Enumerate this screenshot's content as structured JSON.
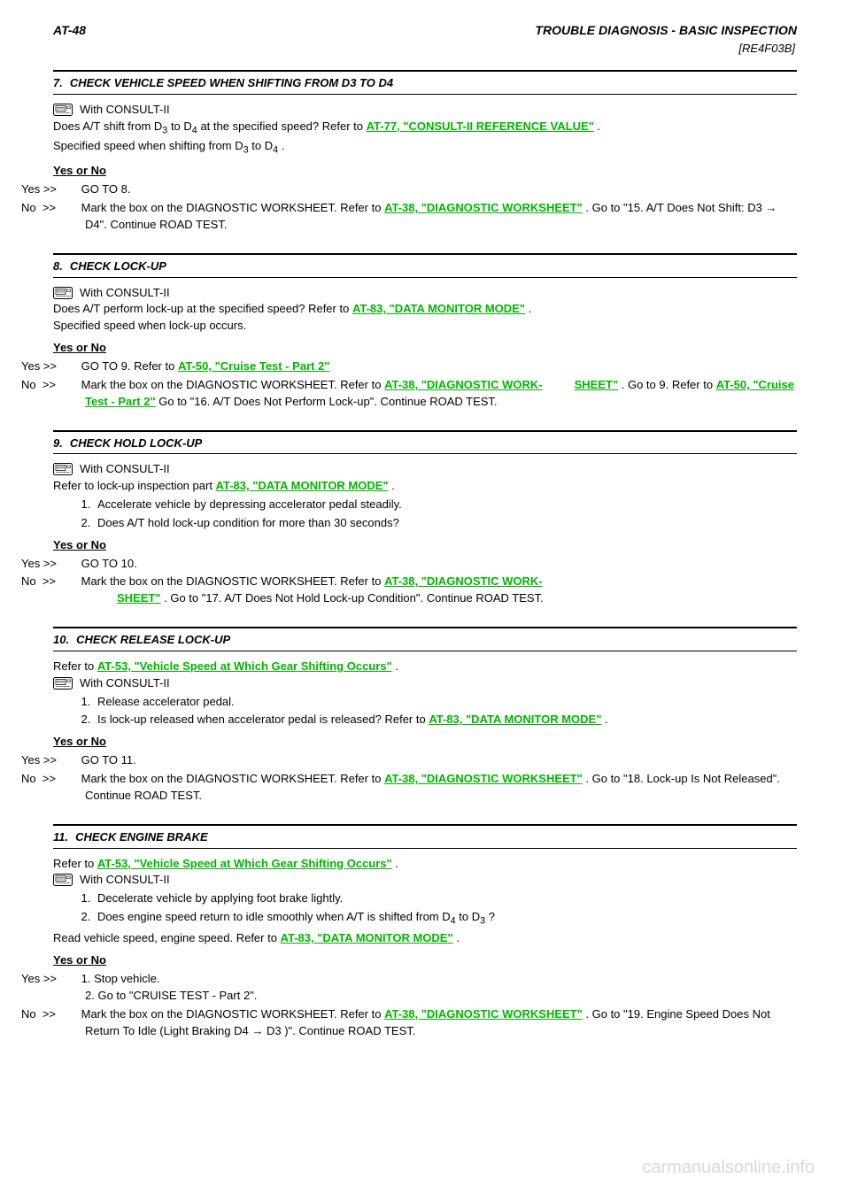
{
  "header": {
    "page_id": "AT-48",
    "section_title": "TROUBLE DIAGNOSIS - BASIC INSPECTION",
    "page_subtitle": "[RE4F03B]"
  },
  "links": {
    "consult_ref": "AT-77, \"CONSULT-II REFERENCE VALUE\"",
    "diag_worksheet": "AT-38, \"DIAGNOSTIC WORKSHEET\"",
    "data_monitor": "AT-83, \"DATA MONITOR MODE\"",
    "cruise_part2": "AT-50, \"Cruise Test - Part 2\"",
    "diag_worksheet_wrap_a": "AT-38, \"DIAGNOSTIC WORK-",
    "diag_worksheet_wrap_b": "SHEET\"",
    "vehicle_speed": "AT-53, \"Vehicle Speed at Which Gear Shifting Occurs\""
  },
  "steps": [
    {
      "num": "7.",
      "title": "CHECK VEHICLE SPEED WHEN SHIFTING FROM D3 TO D4",
      "body_lines": [
        "With CONSULT-II",
        "Does A/T shift from D<sub>3</sub> to D<sub>4</sub> at the specified speed? Refer to <a class=\"link\" data-bind=\"links.consult_ref\"></a> .",
        "Specified speed when shifting from D<sub>3</sub> to D<sub>4</sub> ."
      ],
      "result": {
        "yes": "GO TO 8.",
        "no": "Mark the box on the DIAGNOSTIC WORKSHEET. Refer to <a class=\"link\" data-bind=\"links.diag_worksheet\"></a> . Go to \"15. A/T Does Not Shift: D3 → D4\". Continue ROAD TEST."
      }
    },
    {
      "num": "8.",
      "title": "CHECK LOCK-UP",
      "body_lines": [
        "With CONSULT-II",
        "Does A/T perform lock-up at the specified speed? Refer to <a class=\"link\" data-bind=\"links.data_monitor\"></a> .",
        "Specified speed when lock-up occurs."
      ],
      "result": {
        "yes": "GO TO 9. Refer to <a class=\"link\" data-bind=\"links.cruise_part2\"></a> ",
        "no": "Mark the box on the DIAGNOSTIC WORKSHEET. Refer to <a class=\"link\" data-bind=\"links.diag_worksheet_wrap_a\"></a><span class=\"indent-sub\"><a class=\"link\" data-bind=\"links.diag_worksheet_wrap_b\"></a></span> . Go to 9. Refer to <a class=\"link\" data-bind=\"links.cruise_part2\"></a> Go to \"16. A/T Does Not Perform Lock-up\". Continue ROAD TEST."
      }
    },
    {
      "num": "9.",
      "title": "CHECK HOLD LOCK-UP",
      "ol": [
        "Accelerate vehicle by depressing accelerator pedal steadily.",
        "Does A/T hold lock-up condition for more than 30 seconds?"
      ],
      "body_lines": [
        "With CONSULT-II",
        "Refer to lock-up inspection part <a class=\"link\" data-bind=\"links.data_monitor\"></a> ."
      ],
      "result": {
        "yes": "GO TO 10.",
        "no": "Mark the box on the DIAGNOSTIC WORKSHEET. Refer to <a class=\"link\" data-bind=\"links.diag_worksheet_wrap_a\"></a><br><span class=\"indent-sub\"><a class=\"link\" data-bind=\"links.diag_worksheet_wrap_b\"></a></span> . Go to \"17. A/T Does Not Hold Lock-up Condition\". Continue ROAD TEST."
      }
    },
    {
      "num": "10.",
      "title": "CHECK RELEASE LOCK-UP",
      "pre_link": true,
      "ol": [
        "Release accelerator pedal.",
        "Is lock-up released when accelerator pedal is released? Refer to <a class=\"link\" data-bind=\"links.data_monitor\"></a> ."
      ],
      "body_lines": [
        "Refer to <a class=\"link\" data-bind=\"links.vehicle_speed\"></a> .",
        "With CONSULT-II"
      ],
      "result": {
        "yes": "GO TO 11.",
        "no": "Mark the box on the DIAGNOSTIC WORKSHEET. Refer to <a class=\"link\" data-bind=\"links.diag_worksheet\"></a> . Go to \"18. Lock-up Is Not Released\". Continue ROAD TEST."
      }
    },
    {
      "num": "11.",
      "title": "CHECK ENGINE BRAKE",
      "pre_link": true,
      "ol": [
        "Decelerate vehicle by applying foot brake lightly.",
        "Does engine speed return to idle smoothly when A/T is shifted from D<sub>4</sub> to D<sub>3</sub> ?"
      ],
      "body_lines": [
        "Refer to <a class=\"link\" data-bind=\"links.vehicle_speed\"></a> .",
        "With CONSULT-II",
        "Read vehicle speed, engine speed. Refer to <a class=\"link\" data-bind=\"links.data_monitor\"></a> ."
      ],
      "result": {
        "yes": "1. Stop vehicle.<br>2. Go to \"CRUISE TEST - Part 2\".",
        "no": "Mark the box on the DIAGNOSTIC WORKSHEET. Refer to <a class=\"link\" data-bind=\"links.diag_worksheet\"></a> . Go to \"19. Engine Speed Does Not Return To Idle (Light Braking D4 → D3 )\". Continue ROAD TEST."
      }
    }
  ],
  "watermark": "carmanualsonline.info"
}
